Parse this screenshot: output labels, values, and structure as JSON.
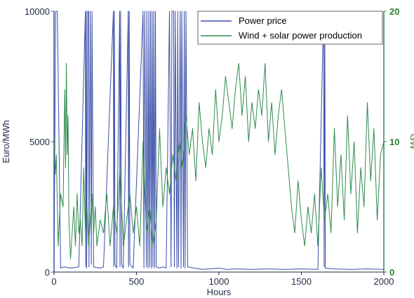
{
  "chart_data": {
    "type": "line",
    "xlabel": "Hours",
    "ylabel_left": "Euro/MWh",
    "ylabel_right": "GW",
    "xlim": [
      0,
      2000
    ],
    "ylim_left": [
      0,
      10000
    ],
    "ylim_right": [
      0,
      20
    ],
    "x_ticks": [
      "0",
      "500",
      "1000",
      "1500",
      "2000"
    ],
    "y_left_ticks": [
      "0",
      "5000",
      "10000"
    ],
    "y_right_ticks": [
      "0",
      "10",
      "20"
    ],
    "grid": false,
    "legend_position": "top-right",
    "series": [
      {
        "name": "Power price",
        "axis": "left",
        "color": "#3b4fa8",
        "x": [
          0,
          5,
          10,
          20,
          40,
          60,
          100,
          150,
          190,
          192,
          196,
          198,
          205,
          210,
          212,
          220,
          226,
          230,
          240,
          280,
          300,
          360,
          362,
          366,
          370,
          380,
          398,
          400,
          404,
          410,
          420,
          450,
          452,
          456,
          460,
          480,
          540,
          545,
          550,
          560,
          563,
          570,
          575,
          580,
          585,
          590,
          595,
          600,
          605,
          610,
          615,
          620,
          640,
          660,
          680,
          700,
          710,
          715,
          725,
          730,
          735,
          745,
          750,
          755,
          765,
          770,
          775,
          785,
          790,
          795,
          800,
          810,
          850,
          900,
          1000,
          1050,
          1100,
          1200,
          1300,
          1400,
          1500,
          1600,
          1635,
          1638,
          1642,
          1645,
          1700,
          1800,
          1900,
          2000
        ],
        "y": [
          300,
          5200,
          10000,
          10000,
          150,
          200,
          150,
          200,
          10000,
          200,
          10000,
          150,
          10000,
          10000,
          200,
          10000,
          300,
          10000,
          200,
          150,
          200,
          10000,
          200,
          10000,
          300,
          150,
          10000,
          200,
          10000,
          300,
          150,
          10000,
          200,
          10000,
          300,
          150,
          10000,
          150,
          10000,
          200,
          10000,
          150,
          10000,
          200,
          10000,
          150,
          10000,
          200,
          10000,
          150,
          10000,
          200,
          150,
          200,
          150,
          10000,
          200,
          10000,
          10000,
          200,
          10000,
          150,
          10000,
          200,
          10000,
          150,
          10000,
          200,
          10000,
          150,
          10000,
          200,
          150,
          100,
          150,
          100,
          120,
          100,
          120,
          100,
          120,
          100,
          10000,
          200,
          10000,
          150,
          120,
          100,
          120,
          100
        ]
      },
      {
        "name": "Wind + solar power production",
        "axis": "right",
        "color": "#2e8b4e",
        "x": [
          0,
          8,
          14,
          25,
          40,
          55,
          65,
          70,
          75,
          80,
          85,
          90,
          100,
          110,
          120,
          130,
          140,
          150,
          160,
          170,
          180,
          190,
          200,
          210,
          220,
          230,
          240,
          250,
          260,
          280,
          300,
          320,
          340,
          360,
          380,
          400,
          420,
          440,
          460,
          480,
          500,
          520,
          540,
          560,
          580,
          600,
          620,
          640,
          660,
          680,
          700,
          720,
          740,
          760,
          780,
          800,
          820,
          840,
          860,
          880,
          900,
          920,
          940,
          960,
          980,
          1000,
          1020,
          1040,
          1060,
          1080,
          1100,
          1120,
          1140,
          1160,
          1180,
          1200,
          1220,
          1240,
          1260,
          1280,
          1300,
          1320,
          1340,
          1360,
          1380,
          1400,
          1420,
          1440,
          1460,
          1480,
          1500,
          1520,
          1540,
          1560,
          1580,
          1600,
          1620,
          1640,
          1660,
          1680,
          1700,
          1720,
          1740,
          1760,
          1780,
          1800,
          1820,
          1840,
          1860,
          1880,
          1900,
          1920,
          1940,
          1960,
          1980,
          2000
        ],
        "y": [
          10.5,
          7.5,
          9,
          2,
          6,
          5,
          14,
          8,
          16,
          9,
          12,
          4,
          1,
          3,
          5,
          2,
          6,
          3,
          4,
          2,
          8,
          3,
          5,
          2,
          4,
          6,
          3,
          5,
          2,
          4,
          3,
          6,
          2,
          5,
          3,
          8,
          2,
          4,
          6,
          3,
          5,
          2,
          10,
          3,
          5,
          2,
          4,
          11,
          5,
          8,
          6,
          9,
          7,
          10,
          8,
          12,
          9,
          11,
          7,
          13,
          10,
          8,
          11,
          9,
          14,
          10,
          12,
          15,
          13,
          11,
          14,
          16,
          12,
          15,
          10,
          13,
          11,
          14,
          12,
          16,
          10,
          13,
          9,
          12,
          14,
          11,
          8,
          5,
          3,
          7,
          4,
          2,
          5,
          3,
          6,
          2,
          8,
          4,
          6,
          3,
          11,
          5,
          9,
          4,
          12,
          6,
          10,
          3,
          8,
          5,
          13,
          7,
          11,
          4,
          9,
          10
        ]
      }
    ]
  }
}
